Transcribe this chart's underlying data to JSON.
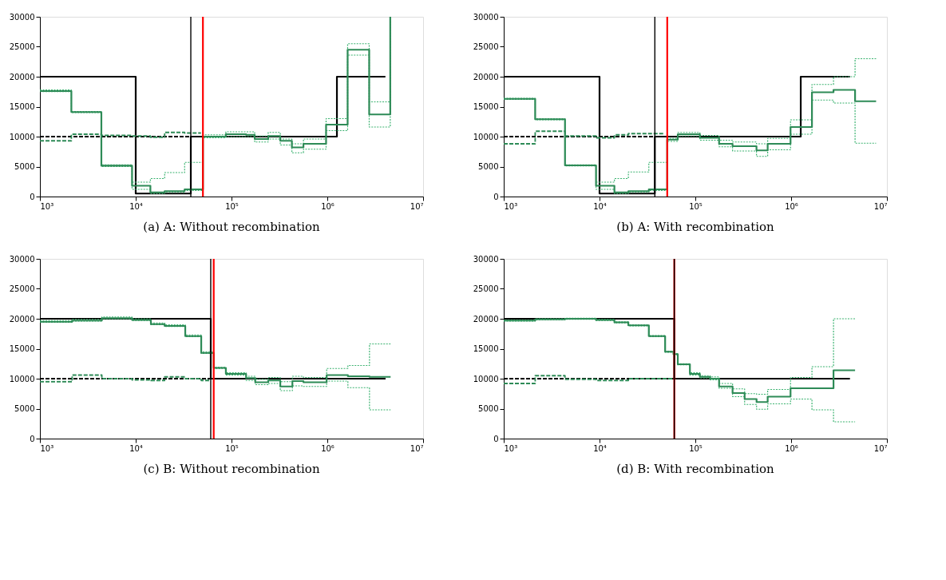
{
  "chart_data": [
    {
      "type": "step",
      "title": "(a) A: Without recombination",
      "log": "x",
      "grid": false,
      "xlim": [
        1000,
        10000000
      ],
      "ylim": [
        0,
        30000
      ],
      "xticks": [
        {
          "value": 1000,
          "label": "10³"
        },
        {
          "value": 10000,
          "label": "10⁴"
        },
        {
          "value": 100000,
          "label": "10⁵"
        },
        {
          "value": 1000000,
          "label": "10⁶"
        },
        {
          "value": 10000000,
          "label": "10⁷"
        }
      ],
      "yticks": [
        0,
        5000,
        10000,
        15000,
        20000,
        25000,
        30000
      ],
      "series": [
        {
          "color": "#000000",
          "line_style": "solid",
          "x": [
            1000,
            10000,
            37600,
            1260000,
            4040000
          ],
          "values": [
            20000,
            500,
            10000,
            20000,
            20000
          ]
        },
        {
          "color": "#000000",
          "line_style": "dashed",
          "x": [
            1000,
            37600
          ],
          "values": [
            10000,
            10000
          ]
        },
        {
          "color": "#3cb371",
          "line_style": "dotted",
          "x": [
            1000,
            2130,
            4380,
            9160,
            14230,
            20050,
            32400,
            50300,
            87300,
            142000,
            174600,
            241500,
            323000,
            426700,
            563600,
            971000,
            1630000,
            2737000,
            4540000
          ],
          "values": [
            17800,
            14200,
            5300,
            2400,
            3000,
            4000,
            5700,
            10300,
            10800,
            10800,
            10100,
            10700,
            9600,
            8800,
            9600,
            13000,
            25500,
            15800,
            30000
          ]
        },
        {
          "color": "#3cb371",
          "line_style": "dotted",
          "x": [
            1000,
            2130,
            4380,
            9160,
            14230,
            20050,
            32400,
            50300,
            87300,
            142000,
            174600,
            241500,
            323000,
            426700,
            563600,
            971000,
            1630000,
            2737000,
            4540000
          ],
          "values": [
            17500,
            14000,
            5000,
            1200,
            500,
            700,
            1000,
            9800,
            10000,
            10000,
            9100,
            9600,
            8600,
            7300,
            7900,
            11000,
            23600,
            11600,
            30000
          ]
        },
        {
          "color": "#2e8b57",
          "line_style": "dashed",
          "x": [
            1000,
            2130,
            4380,
            9160,
            14230,
            20050,
            32400,
            48000
          ],
          "values": [
            9300,
            10400,
            10200,
            10100,
            9900,
            10700,
            10600,
            10600
          ]
        },
        {
          "color": "#2e8b57",
          "line_style": "solid",
          "x": [
            1000,
            2130,
            4380,
            9160,
            14230,
            20050,
            32400,
            50300,
            87300,
            142000,
            174600,
            241500,
            323000,
            426700,
            563600,
            971000,
            1630000,
            2737000,
            4540000
          ],
          "values": [
            17600,
            14100,
            5150,
            1800,
            700,
            900,
            1200,
            10000,
            10400,
            10300,
            9600,
            10100,
            9300,
            8200,
            8800,
            12000,
            24500,
            13700,
            30000
          ]
        }
      ],
      "ref_lines": [
        {
          "axis": "x",
          "value": 37600,
          "color": "#000000"
        },
        {
          "axis": "x",
          "value": 50300,
          "color": "#ff0000"
        }
      ]
    },
    {
      "type": "step",
      "title": "(b) A: With recombination",
      "log": "x",
      "grid": false,
      "xlim": [
        1000,
        10000000
      ],
      "ylim": [
        0,
        30000
      ],
      "xticks": [
        {
          "value": 1000,
          "label": "10³"
        },
        {
          "value": 10000,
          "label": "10⁴"
        },
        {
          "value": 100000,
          "label": "10⁵"
        },
        {
          "value": 1000000,
          "label": "10⁶"
        },
        {
          "value": 10000000,
          "label": "10⁷"
        }
      ],
      "yticks": [
        0,
        5000,
        10000,
        15000,
        20000,
        25000,
        30000
      ],
      "series": [
        {
          "color": "#000000",
          "line_style": "solid",
          "x": [
            1000,
            10000,
            37800,
            1260000,
            4110000
          ],
          "values": [
            20000,
            500,
            10000,
            20000,
            20000
          ]
        },
        {
          "color": "#000000",
          "line_style": "dashed",
          "x": [
            1000,
            37800
          ],
          "values": [
            10000,
            10000
          ]
        },
        {
          "color": "#3cb371",
          "line_style": "dotted",
          "x": [
            1000,
            2130,
            4360,
            9190,
            14300,
            20000,
            32700,
            50900,
            65600,
            111600,
            177000,
            244700,
            435000,
            569000,
            986000,
            1650000,
            2770000,
            4650000,
            7710000
          ],
          "values": [
            16400,
            13000,
            5300,
            2400,
            3000,
            4100,
            5700,
            9700,
            10700,
            10200,
            9400,
            9100,
            8800,
            9700,
            12800,
            18700,
            20000,
            23000,
            23000
          ]
        },
        {
          "color": "#3cb371",
          "line_style": "dotted",
          "x": [
            1000,
            2130,
            4360,
            9190,
            14300,
            20000,
            32700,
            50900,
            65600,
            111600,
            177000,
            244700,
            435000,
            569000,
            986000,
            1650000,
            2770000,
            4650000,
            7710000
          ],
          "values": [
            16200,
            12800,
            5100,
            1200,
            500,
            700,
            1000,
            9200,
            10100,
            9400,
            8300,
            7600,
            6700,
            7800,
            10400,
            16100,
            15600,
            8900,
            8900
          ]
        },
        {
          "color": "#2e8b57",
          "line_style": "dashed",
          "x": [
            1000,
            2130,
            4360,
            9190,
            14300,
            20000,
            48000
          ],
          "values": [
            8800,
            10900,
            10100,
            9800,
            10300,
            10500,
            10500
          ]
        },
        {
          "color": "#2e8b57",
          "line_style": "solid",
          "x": [
            1000,
            2130,
            4360,
            9190,
            14300,
            20000,
            32700,
            50900,
            65600,
            111600,
            177000,
            244700,
            435000,
            569000,
            986000,
            1650000,
            2770000,
            4650000,
            7710000
          ],
          "values": [
            16300,
            12900,
            5200,
            1800,
            700,
            900,
            1200,
            9500,
            10400,
            9800,
            8800,
            8400,
            7700,
            8800,
            11600,
            17400,
            17800,
            15900,
            15900
          ]
        }
      ],
      "ref_lines": [
        {
          "axis": "x",
          "value": 37800,
          "color": "#000000"
        },
        {
          "axis": "x",
          "value": 50900,
          "color": "#ff0000"
        }
      ]
    },
    {
      "type": "step",
      "title": "(c) B: Without recombination",
      "log": "x",
      "grid": false,
      "xlim": [
        1000,
        10000000
      ],
      "ylim": [
        0,
        30000
      ],
      "xticks": [
        {
          "value": 1000,
          "label": "10³"
        },
        {
          "value": 10000,
          "label": "10⁴"
        },
        {
          "value": 100000,
          "label": "10⁵"
        },
        {
          "value": 1000000,
          "label": "10⁶"
        },
        {
          "value": 10000000,
          "label": "10⁷"
        }
      ],
      "yticks": [
        0,
        5000,
        10000,
        15000,
        20000,
        25000,
        30000
      ],
      "series": [
        {
          "color": "#000000",
          "line_style": "solid",
          "x": [
            1000,
            60700,
            4060000
          ],
          "values": [
            20000,
            10000,
            10000
          ]
        },
        {
          "color": "#000000",
          "line_style": "dashed",
          "x": [
            1000,
            60700
          ],
          "values": [
            10000,
            10000
          ]
        },
        {
          "color": "#3cb371",
          "line_style": "dotted",
          "x": [
            1000,
            2170,
            4430,
            9160,
            14400,
            20050,
            32900,
            48300,
            65200,
            87300,
            142000,
            177000,
            241500,
            323000,
            432000,
            563600,
            985000,
            1640000,
            2757000,
            4580000
          ],
          "values": [
            19700,
            19900,
            20300,
            20000,
            19300,
            19000,
            17300,
            14500,
            11900,
            11000,
            10400,
            9900,
            10200,
            9500,
            10400,
            10200,
            11700,
            12200,
            15800,
            15800
          ]
        },
        {
          "color": "#3cb371",
          "line_style": "dotted",
          "x": [
            1000,
            2170,
            4430,
            9160,
            14400,
            20050,
            32900,
            48300,
            65200,
            87300,
            142000,
            177000,
            241500,
            323000,
            432000,
            563600,
            985000,
            1640000,
            2757000,
            4580000
          ],
          "values": [
            19400,
            19600,
            20000,
            19700,
            19000,
            18700,
            17000,
            14200,
            11700,
            10600,
            9700,
            9000,
            9200,
            8000,
            8800,
            8700,
            9600,
            8500,
            4800,
            4800
          ]
        },
        {
          "color": "#2e8b57",
          "line_style": "dashed",
          "x": [
            1000,
            2170,
            4430,
            9160,
            14400,
            20050,
            32900,
            48300,
            60700
          ],
          "values": [
            9500,
            10600,
            10000,
            9800,
            9700,
            10300,
            10000,
            9700,
            9700
          ]
        },
        {
          "color": "#2e8b57",
          "line_style": "solid",
          "x": [
            1000,
            2170,
            4430,
            9160,
            14400,
            20050,
            32900,
            48300,
            65200,
            87300,
            142000,
            177000,
            241500,
            323000,
            432000,
            563600,
            985000,
            1640000,
            2757000,
            4580000
          ],
          "values": [
            19500,
            19700,
            20100,
            19800,
            19100,
            18800,
            17100,
            14300,
            11800,
            10800,
            10100,
            9400,
            9700,
            8700,
            9600,
            9400,
            10600,
            10400,
            10300,
            10300
          ]
        }
      ],
      "ref_lines": [
        {
          "axis": "x",
          "value": 60700,
          "color": "#000000"
        },
        {
          "axis": "x",
          "value": 65200,
          "color": "#ff0000"
        }
      ]
    },
    {
      "type": "step",
      "title": "(d) B: With recombination",
      "log": "x",
      "grid": false,
      "xlim": [
        1000,
        10000000
      ],
      "ylim": [
        0,
        30000
      ],
      "xticks": [
        {
          "value": 1000,
          "label": "10³"
        },
        {
          "value": 10000,
          "label": "10⁴"
        },
        {
          "value": 100000,
          "label": "10⁵"
        },
        {
          "value": 1000000,
          "label": "10⁶"
        },
        {
          "value": 10000000,
          "label": "10⁷"
        }
      ],
      "yticks": [
        0,
        5000,
        10000,
        15000,
        20000,
        25000,
        30000
      ],
      "series": [
        {
          "color": "#000000",
          "line_style": "solid",
          "x": [
            1000,
            60300,
            4110000
          ],
          "values": [
            20000,
            10000,
            10000
          ]
        },
        {
          "color": "#000000",
          "line_style": "dashed",
          "x": [
            1000,
            60300
          ],
          "values": [
            10000,
            10000
          ]
        },
        {
          "color": "#3cb371",
          "line_style": "dotted",
          "x": [
            1000,
            2130,
            4360,
            9190,
            14300,
            20000,
            32700,
            48400,
            59100,
            65600,
            87800,
            111600,
            142900,
            177000,
            244700,
            327000,
            435800,
            569000,
            986000,
            1650000,
            2770000,
            4650000
          ],
          "values": [
            19800,
            20000,
            20100,
            19900,
            19500,
            19000,
            17200,
            14600,
            14200,
            12500,
            11000,
            10500,
            10300,
            9200,
            8300,
            7500,
            7400,
            8200,
            10200,
            12000,
            20000,
            20000
          ]
        },
        {
          "color": "#3cb371",
          "line_style": "dotted",
          "x": [
            1000,
            2130,
            4360,
            9190,
            14300,
            20000,
            32700,
            48400,
            59100,
            65600,
            87800,
            111600,
            142900,
            177000,
            244700,
            327000,
            435800,
            569000,
            986000,
            1650000,
            2770000,
            4650000
          ],
          "values": [
            19600,
            19800,
            19900,
            19700,
            19300,
            18800,
            17000,
            14400,
            14000,
            12300,
            10600,
            10100,
            9800,
            8400,
            7000,
            5700,
            4900,
            5800,
            6600,
            4800,
            2800,
            2800
          ]
        },
        {
          "color": "#2e8b57",
          "line_style": "dashed",
          "x": [
            1000,
            2130,
            4360,
            9190,
            20000,
            59100
          ],
          "values": [
            9200,
            10500,
            9900,
            9700,
            10000,
            10000
          ]
        },
        {
          "color": "#2e8b57",
          "line_style": "solid",
          "x": [
            1000,
            2130,
            4360,
            9190,
            14300,
            20000,
            32700,
            48400,
            59100,
            65600,
            87800,
            111600,
            142900,
            177000,
            244700,
            327000,
            435800,
            569000,
            986000,
            2770000,
            4650000
          ],
          "values": [
            19700,
            19900,
            20000,
            19800,
            19400,
            18900,
            17100,
            14500,
            14100,
            12400,
            10800,
            10300,
            10000,
            8700,
            7600,
            6600,
            6100,
            7000,
            8400,
            11400,
            11400
          ]
        }
      ],
      "ref_lines": [
        {
          "axis": "x",
          "value": 60300,
          "color": "#ff0000"
        },
        {
          "axis": "x",
          "value": 60300,
          "color": "#000000"
        }
      ]
    }
  ]
}
